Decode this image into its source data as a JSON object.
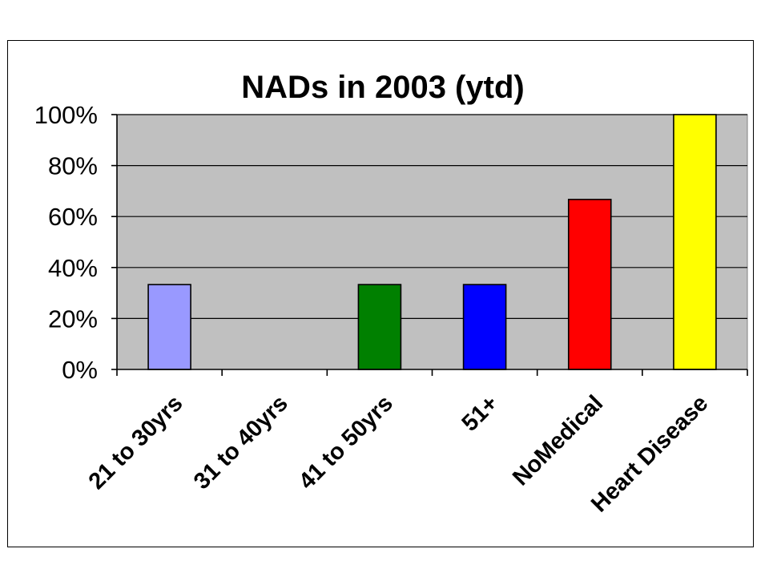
{
  "chart_data": {
    "type": "bar",
    "title": "NADs in 2003 (ytd)",
    "xlabel": "",
    "ylabel": "",
    "categories": [
      "21 to 30yrs",
      "31 to 40yrs",
      "41 to 50yrs",
      "51+",
      "NoMedical",
      "Heart Disease"
    ],
    "values": [
      33.3,
      0,
      33.3,
      33.3,
      66.7,
      100
    ],
    "bar_colors": [
      "#9999ff",
      "#9999ff",
      "#008000",
      "#0000ff",
      "#ff0000",
      "#ffff00"
    ],
    "ylim": [
      0,
      100
    ],
    "yticks": [
      0,
      20,
      40,
      60,
      80,
      100
    ],
    "ytick_labels": [
      "0%",
      "20%",
      "40%",
      "60%",
      "80%",
      "100%"
    ],
    "grid": true,
    "plot_background": "#c0c0c0",
    "legend": "none"
  }
}
